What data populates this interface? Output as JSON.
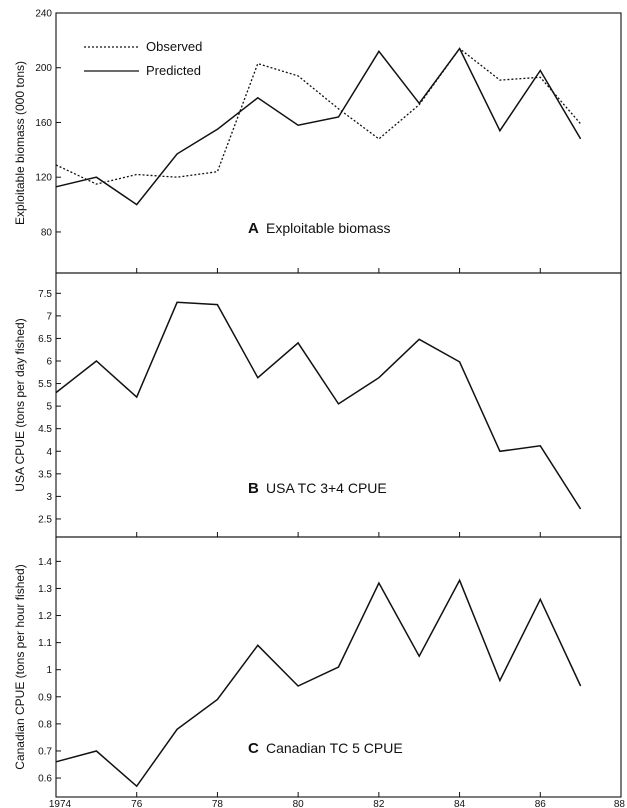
{
  "chart_data": [
    {
      "type": "line",
      "panel_letter": "A",
      "title": "Exploitable biomass",
      "ylabel": "Exploitable biomass (000 tons)",
      "ylim": [
        50,
        240
      ],
      "yticks": [
        80,
        120,
        160,
        200,
        240
      ],
      "legend": "top-left",
      "x": [
        1974,
        1975,
        1976,
        1977,
        1978,
        1979,
        1980,
        1981,
        1982,
        1983,
        1984,
        1985,
        1986,
        1987
      ],
      "series": [
        {
          "name": "Observed",
          "style": "dotted",
          "values": [
            129,
            115,
            122,
            120,
            124,
            203,
            194,
            170,
            148,
            173,
            214,
            191,
            193,
            159
          ]
        },
        {
          "name": "Predicted",
          "style": "solid",
          "values": [
            113,
            120,
            100,
            137,
            155,
            178,
            158,
            164,
            212,
            174,
            214,
            154,
            198,
            148
          ]
        }
      ]
    },
    {
      "type": "line",
      "panel_letter": "B",
      "title": "USA TC 3+4 CPUE",
      "ylabel": "USA CPUE (tons per day fished)",
      "ylim": [
        2.1,
        7.95
      ],
      "yticks": [
        2.5,
        3,
        3.5,
        4,
        4.5,
        5,
        5.5,
        6,
        6.5,
        7,
        7.5
      ],
      "x": [
        1974,
        1975,
        1976,
        1977,
        1978,
        1979,
        1980,
        1981,
        1982,
        1983,
        1984,
        1985,
        1986,
        1987
      ],
      "series": [
        {
          "style": "solid",
          "values": [
            5.3,
            6.0,
            5.2,
            7.3,
            7.25,
            5.63,
            6.4,
            5.05,
            5.63,
            6.48,
            5.98,
            4.0,
            4.12,
            2.72
          ]
        }
      ]
    },
    {
      "type": "line",
      "panel_letter": "C",
      "title": "Canadian TC 5 CPUE",
      "ylabel": "Canadian CPUE (tons per hour fished)",
      "ylim": [
        0.53,
        1.49
      ],
      "yticks": [
        0.6,
        0.7,
        0.8,
        0.9,
        1,
        1.1,
        1.2,
        1.3,
        1.4
      ],
      "x": [
        1974,
        1975,
        1976,
        1977,
        1978,
        1979,
        1980,
        1981,
        1982,
        1983,
        1984,
        1985,
        1986,
        1987
      ],
      "series": [
        {
          "style": "solid",
          "values": [
            0.66,
            0.7,
            0.57,
            0.78,
            0.89,
            1.09,
            0.94,
            1.01,
            1.32,
            1.05,
            1.33,
            0.96,
            1.26,
            0.94
          ]
        }
      ]
    }
  ],
  "x_axis": {
    "xlim": [
      1974,
      1988
    ],
    "tick_values": [
      1974,
      1976,
      1978,
      1980,
      1982,
      1984,
      1986,
      1988
    ],
    "tick_labels": [
      "1974",
      "76",
      "78",
      "80",
      "82",
      "84",
      "86",
      "88"
    ]
  }
}
